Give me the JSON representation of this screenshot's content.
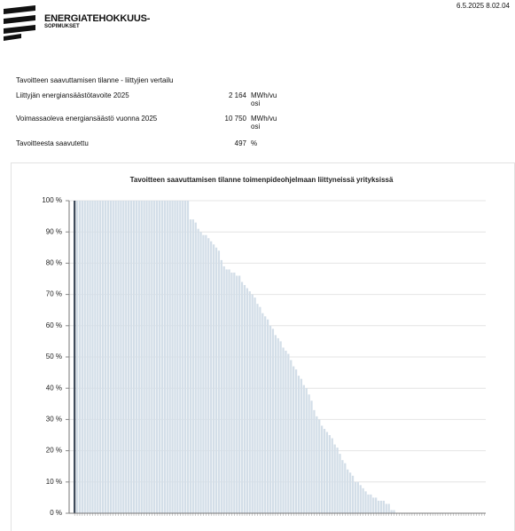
{
  "header": {
    "logo_line1": "ENERGIATEHOKKUUS-",
    "logo_line2": "SOPIMUKSET",
    "timestamp": "6.5.2025 8.02.04"
  },
  "section": {
    "title": "Tavoitteen saavuttamisen tilanne - liittyjien vertailu",
    "rows": [
      {
        "label": "Liittyjän energiansäästötavoite 2025",
        "value": "2 164",
        "unit": "MWh/vuosi"
      },
      {
        "label": "Voimassaoleva energiansäästö vuonna 2025",
        "value": "10 750",
        "unit": "MWh/vuosi"
      },
      {
        "label": "Tavoitteesta saavutettu",
        "value": "497",
        "unit": "%"
      }
    ]
  },
  "chart_data": {
    "type": "bar",
    "title": "Tavoitteen saavuttamisen tilanne toimenpideohjelmaan liittyneissä yrityksissä",
    "color": "#d3dee8",
    "highlight": {
      "index": 0,
      "color": "#3e4b5b"
    },
    "grid": true,
    "ylim": [
      0,
      100
    ],
    "yticks": [
      {
        "value": 0,
        "label": "0 %"
      },
      {
        "value": 10,
        "label": "10 %"
      },
      {
        "value": 20,
        "label": "20 %"
      },
      {
        "value": 30,
        "label": "30 %"
      },
      {
        "value": 40,
        "label": "40 %"
      },
      {
        "value": 50,
        "label": "50 %"
      },
      {
        "value": 60,
        "label": "60 %"
      },
      {
        "value": 70,
        "label": "70 %"
      },
      {
        "value": 80,
        "label": "80 %"
      },
      {
        "value": 90,
        "label": "90 %"
      },
      {
        "value": 100,
        "label": "100 %"
      }
    ],
    "values": [
      100,
      100,
      100,
      100,
      100,
      100,
      100,
      100,
      100,
      100,
      100,
      100,
      100,
      100,
      100,
      100,
      100,
      100,
      100,
      100,
      100,
      100,
      100,
      100,
      100,
      100,
      100,
      100,
      100,
      100,
      100,
      100,
      100,
      100,
      100,
      100,
      100,
      100,
      100,
      100,
      100,
      100,
      100,
      100,
      100,
      94,
      94,
      93,
      91,
      90,
      89,
      89,
      88,
      87,
      86,
      85,
      84,
      81,
      79,
      78,
      78,
      77,
      77,
      76,
      76,
      74,
      73,
      72,
      71,
      70,
      69,
      67,
      66,
      64,
      63,
      62,
      60,
      59,
      57,
      56,
      55,
      53,
      52,
      51,
      49,
      47,
      46,
      44,
      43,
      41,
      40,
      38,
      36,
      33,
      31,
      30,
      28,
      27,
      26,
      25,
      24,
      22,
      21,
      19,
      17,
      16,
      14,
      13,
      12,
      10,
      10,
      9,
      8,
      7,
      6,
      6,
      5,
      5,
      4,
      4,
      4,
      3,
      3,
      1,
      1,
      0,
      0,
      0,
      0,
      0,
      0,
      0,
      0,
      0,
      0,
      0,
      0,
      0,
      0,
      0,
      0,
      0,
      0,
      0,
      0,
      0,
      0,
      0,
      0,
      0,
      0,
      0,
      0,
      0,
      0,
      0,
      0,
      0,
      0,
      0
    ]
  }
}
